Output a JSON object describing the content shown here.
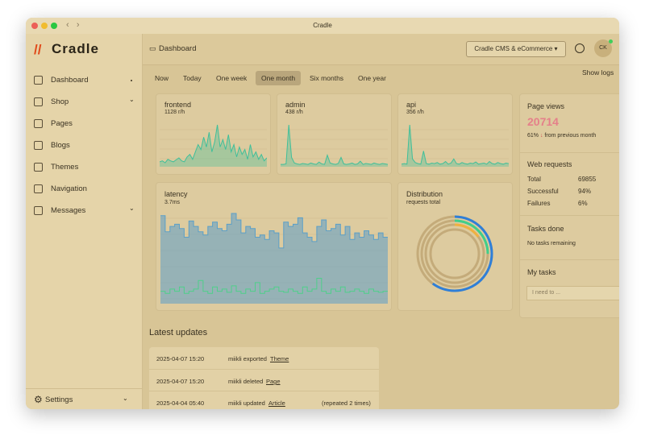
{
  "window": {
    "title": "Cradle"
  },
  "sidebar": {
    "logo": "Cradle",
    "nav": [
      "Dashboard",
      "Shop",
      "Pages",
      "Blogs",
      "Themes",
      "Navigation",
      "Messages"
    ],
    "settings": "Settings"
  },
  "header": {
    "breadcrumb": "Dashboard",
    "store": "Cradle CMS & eCommerce",
    "avatar": "CK"
  },
  "ranges": {
    "items": [
      "Now",
      "Today",
      "One week",
      "One month",
      "Six months",
      "One year"
    ],
    "active": 3,
    "logs": "Show logs"
  },
  "cards": [
    {
      "title": "frontend",
      "subtitle": "1128 r/h",
      "color": "#3fbf9a",
      "values": [
        10,
        12,
        8,
        15,
        12,
        10,
        14,
        18,
        12,
        10,
        20,
        25,
        15,
        30,
        45,
        35,
        60,
        40,
        70,
        30,
        50,
        85,
        40,
        55,
        35,
        65,
        30,
        45,
        20,
        40,
        25,
        35,
        15,
        45,
        20,
        30,
        15,
        25,
        12,
        18
      ]
    },
    {
      "title": "admin",
      "subtitle": "438 r/h",
      "color": "#3fbf9a",
      "values": [
        5,
        5,
        6,
        90,
        20,
        8,
        6,
        5,
        7,
        6,
        5,
        8,
        6,
        5,
        10,
        6,
        5,
        25,
        8,
        6,
        5,
        7,
        20,
        6,
        5,
        6,
        8,
        5,
        6,
        12,
        5,
        7,
        6,
        5,
        8,
        6,
        5,
        7,
        6,
        5
      ]
    },
    {
      "title": "api",
      "subtitle": "356 r/h",
      "color": "#3fbf9a",
      "values": [
        5,
        6,
        5,
        80,
        15,
        8,
        6,
        5,
        30,
        6,
        5,
        7,
        6,
        8,
        5,
        6,
        10,
        5,
        7,
        15,
        6,
        5,
        8,
        6,
        5,
        7,
        6,
        9,
        5,
        6,
        7,
        5,
        10,
        6,
        5,
        8,
        6,
        5,
        7,
        6
      ]
    }
  ],
  "latency": {
    "title": "latency",
    "subtitle": "3.7ms",
    "series": [
      {
        "color": "#5b9fc8",
        "values": [
          80,
          65,
          70,
          72,
          68,
          60,
          75,
          70,
          65,
          62,
          70,
          74,
          68,
          66,
          72,
          82,
          76,
          64,
          70,
          68,
          60,
          62,
          58,
          66,
          64,
          50,
          74,
          70,
          72,
          78,
          64,
          60,
          56,
          70,
          76,
          66,
          68,
          72,
          62,
          70,
          58,
          64,
          60,
          66,
          62,
          58,
          64,
          60
        ]
      },
      {
        "color": "#4fcf8a",
        "values": [
          10,
          8,
          12,
          10,
          14,
          8,
          10,
          12,
          20,
          10,
          8,
          14,
          10,
          12,
          9,
          15,
          10,
          8,
          12,
          10,
          18,
          8,
          10,
          12,
          14,
          10,
          9,
          12,
          10,
          8,
          14,
          10,
          12,
          22,
          10,
          8,
          12,
          10,
          14,
          9,
          10,
          12,
          10,
          8,
          12,
          10,
          9,
          10
        ]
      }
    ]
  },
  "distribution": {
    "title": "Distribution",
    "subtitle": "requests total",
    "rings": [
      {
        "color": "#2f7fd8",
        "value": 60
      },
      {
        "color": "#3fcf8a",
        "value": 25
      },
      {
        "color": "#f0b040",
        "value": 15
      }
    ]
  },
  "stats": {
    "pageviews": {
      "title": "Page views",
      "value": "20714",
      "change": "61%",
      "note": "from previous month"
    },
    "web": {
      "title": "Web requests",
      "rows": [
        [
          "Total",
          "69855"
        ],
        [
          "Successful",
          "94%"
        ],
        [
          "Failures",
          "6%"
        ]
      ]
    },
    "tasks": {
      "title": "Tasks done",
      "note": "No tasks remaining"
    },
    "mytasks": {
      "title": "My tasks",
      "placeholder": "I need to ..."
    }
  },
  "updates": {
    "title": "Latest updates",
    "rows": [
      {
        "date": "2025-04-07 15:20",
        "text": "miikli exported",
        "link": "Theme"
      },
      {
        "date": "2025-04-07 15:20",
        "text": "miikli deleted",
        "link": "Page"
      },
      {
        "date": "2025-04-04 05:40",
        "text": "miikli updated",
        "link": "Article",
        "extra": "(repeated 2 times)"
      }
    ]
  }
}
